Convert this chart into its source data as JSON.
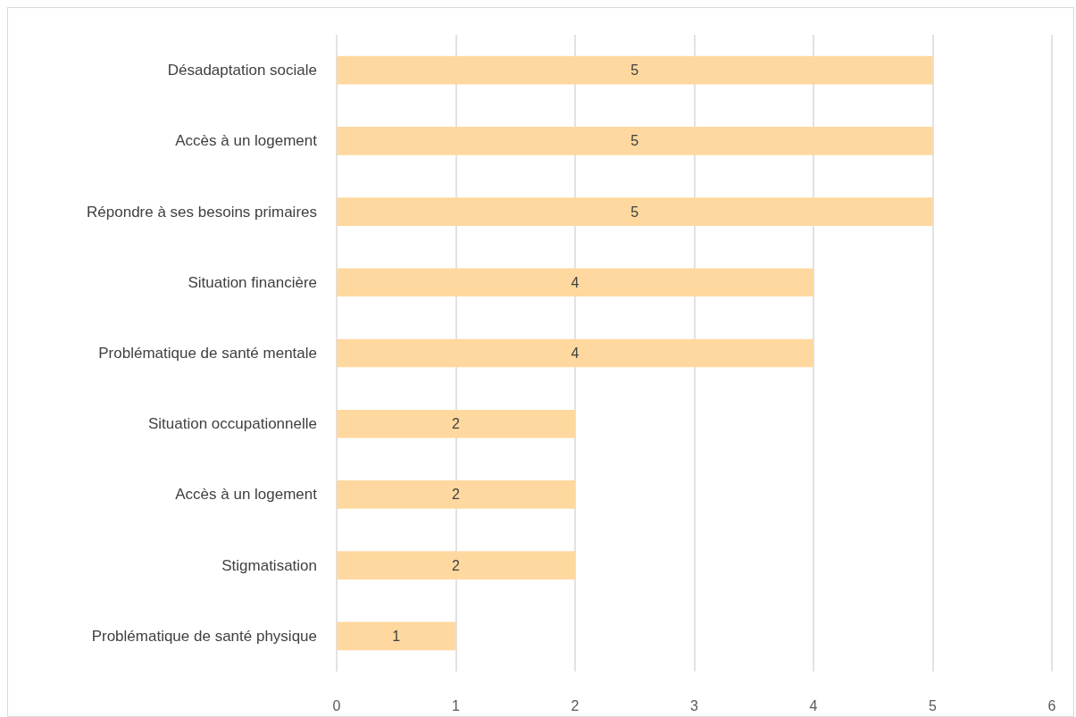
{
  "chart_data": {
    "type": "bar",
    "orientation": "horizontal",
    "categories": [
      "Désadaptation sociale",
      "Accès à un logement",
      "Répondre à ses besoins primaires",
      "Situation financière",
      "Problématique de santé mentale",
      "Situation occupationnelle",
      "Accès à un logement",
      "Stigmatisation",
      "Problématique de santé physique"
    ],
    "values": [
      5,
      5,
      5,
      4,
      4,
      2,
      2,
      2,
      1
    ],
    "color": "#ffd89f",
    "xlim": [
      0,
      6
    ],
    "xticks": [
      0,
      1,
      2,
      3,
      4,
      5,
      6
    ],
    "grid": "x",
    "data_labels": true
  }
}
